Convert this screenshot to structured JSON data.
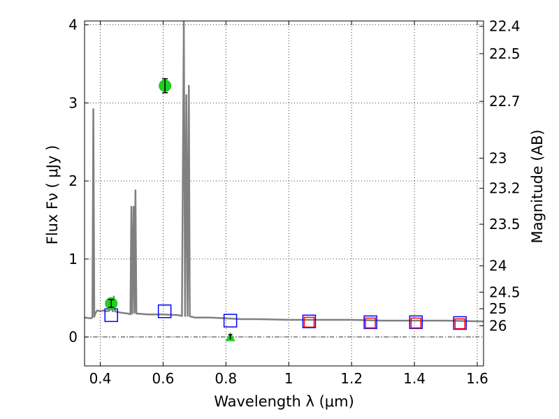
{
  "chart_data": {
    "type": "line",
    "title": "",
    "xlabel": "Wavelength  λ (μm)",
    "ylabel": "Flux  Fν  ( μJy )",
    "y2label": "Magnitude (AB)",
    "xlim": [
      0.35,
      1.62
    ],
    "ylim": [
      -0.37,
      4.05
    ],
    "grid": true,
    "x_ticks": [
      0.4,
      0.6,
      0.8,
      1.0,
      1.2,
      1.4,
      1.6
    ],
    "x_tick_labels": [
      "0.4",
      "0.6",
      "0.8",
      "1",
      "1.2",
      "1.4",
      "1.6"
    ],
    "y_ticks": [
      0,
      1,
      2,
      3,
      4
    ],
    "y_tick_labels": [
      "0",
      "1",
      "2",
      "3",
      "4"
    ],
    "y2_ticks": [
      {
        "label": "22.4",
        "value": 22.4
      },
      {
        "label": "22.5",
        "value": 22.5
      },
      {
        "label": "22.7",
        "value": 22.7
      },
      {
        "label": "23",
        "value": 23.0
      },
      {
        "label": "23.2",
        "value": 23.2
      },
      {
        "label": "23.5",
        "value": 23.5
      },
      {
        "label": "24",
        "value": 24.0
      },
      {
        "label": "24.5",
        "value": 24.5
      },
      {
        "label": "25",
        "value": 25.0
      },
      {
        "label": "26",
        "value": 26.0
      }
    ],
    "series": [
      {
        "kind": "line",
        "color": "#808080",
        "x": [
          0.35,
          0.37,
          0.375,
          0.378,
          0.381,
          0.384,
          0.39,
          0.4,
          0.41,
          0.42,
          0.43,
          0.434,
          0.437,
          0.44,
          0.443,
          0.447,
          0.455,
          0.47,
          0.49,
          0.496,
          0.499,
          0.502,
          0.506,
          0.509,
          0.512,
          0.515,
          0.52,
          0.55,
          0.6,
          0.65,
          0.66,
          0.666,
          0.67,
          0.674,
          0.678,
          0.682,
          0.685,
          0.688,
          0.692,
          0.7,
          0.75,
          0.8,
          0.85,
          0.9,
          1.0,
          1.1,
          1.2,
          1.3,
          1.4,
          1.5,
          1.62
        ],
        "y": [
          0.25,
          0.24,
          0.25,
          2.92,
          0.26,
          0.3,
          0.34,
          0.33,
          0.34,
          0.33,
          0.34,
          0.5,
          0.35,
          0.33,
          0.52,
          0.33,
          0.32,
          0.31,
          0.3,
          0.29,
          1.67,
          0.3,
          1.67,
          0.31,
          1.88,
          0.3,
          0.3,
          0.29,
          0.29,
          0.28,
          0.27,
          4.05,
          0.27,
          3.1,
          0.27,
          3.22,
          0.27,
          0.26,
          0.26,
          0.25,
          0.25,
          0.24,
          0.23,
          0.23,
          0.22,
          0.22,
          0.22,
          0.21,
          0.21,
          0.21,
          0.2
        ]
      },
      {
        "kind": "model-photometry",
        "marker": "square",
        "color": "#0000ff",
        "x": [
          0.435,
          0.605,
          0.814,
          1.065,
          1.26,
          1.405,
          1.545
        ],
        "y": [
          0.28,
          0.33,
          0.21,
          0.2,
          0.19,
          0.19,
          0.18
        ]
      },
      {
        "kind": "model-photometry",
        "marker": "square",
        "color": "#ff0000",
        "x": [
          1.065,
          1.26,
          1.405,
          1.545
        ],
        "y": [
          0.19,
          0.18,
          0.18,
          0.17
        ]
      },
      {
        "kind": "observed",
        "marker": "circle",
        "color": "#22cc22",
        "x": [
          0.435,
          0.606
        ],
        "y": [
          0.43,
          3.22
        ],
        "yerr": [
          0.05,
          0.09
        ]
      },
      {
        "kind": "upper-limit",
        "marker": "triangle",
        "color": "#22cc22",
        "x": [
          0.814
        ],
        "y": [
          0.0
        ],
        "yerr": [
          0.03
        ]
      }
    ]
  }
}
